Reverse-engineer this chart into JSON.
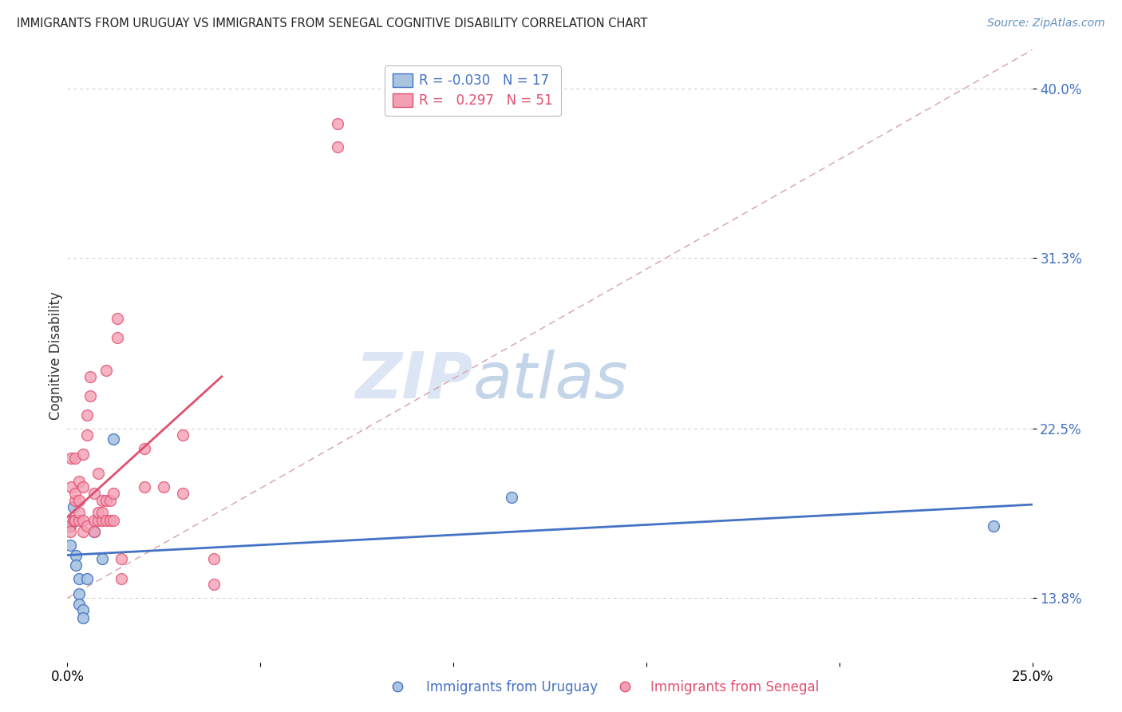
{
  "title": "IMMIGRANTS FROM URUGUAY VS IMMIGRANTS FROM SENEGAL COGNITIVE DISABILITY CORRELATION CHART",
  "source": "Source: ZipAtlas.com",
  "ylabel": "Cognitive Disability",
  "watermark_zip": "ZIP",
  "watermark_atlas": "atlas",
  "xlim": [
    0.0,
    0.25
  ],
  "ylim": [
    0.105,
    0.42
  ],
  "yticks": [
    0.138,
    0.225,
    0.313,
    0.4
  ],
  "ytick_labels": [
    "13.8%",
    "22.5%",
    "31.3%",
    "40.0%"
  ],
  "xticks": [
    0.0,
    0.05,
    0.1,
    0.15,
    0.2,
    0.25
  ],
  "xtick_labels": [
    "0.0%",
    "",
    "",
    "",
    "",
    "25.0%"
  ],
  "color_uruguay": "#a8c4e0",
  "color_senegal": "#f4a0b4",
  "color_line_uruguay": "#4472c4",
  "color_line_senegal": "#e05070",
  "color_ref_line": "#d8a0a8",
  "background_color": "#ffffff",
  "grid_color": "#cccccc",
  "uruguay_x": [
    0.0008,
    0.0008,
    0.0015,
    0.0015,
    0.0022,
    0.0022,
    0.003,
    0.003,
    0.003,
    0.004,
    0.004,
    0.005,
    0.007,
    0.009,
    0.012,
    0.115,
    0.24
  ],
  "uruguay_y": [
    0.175,
    0.165,
    0.185,
    0.178,
    0.16,
    0.155,
    0.148,
    0.14,
    0.135,
    0.132,
    0.128,
    0.148,
    0.172,
    0.158,
    0.22,
    0.19,
    0.175
  ],
  "senegal_x": [
    0.0005,
    0.0008,
    0.001,
    0.001,
    0.0015,
    0.002,
    0.002,
    0.002,
    0.002,
    0.003,
    0.003,
    0.003,
    0.003,
    0.004,
    0.004,
    0.004,
    0.004,
    0.005,
    0.005,
    0.005,
    0.006,
    0.006,
    0.007,
    0.007,
    0.007,
    0.008,
    0.008,
    0.008,
    0.009,
    0.009,
    0.009,
    0.01,
    0.01,
    0.01,
    0.011,
    0.011,
    0.012,
    0.012,
    0.013,
    0.013,
    0.014,
    0.014,
    0.02,
    0.02,
    0.025,
    0.03,
    0.03,
    0.038,
    0.038,
    0.07,
    0.07
  ],
  "senegal_y": [
    0.175,
    0.172,
    0.195,
    0.21,
    0.178,
    0.178,
    0.188,
    0.192,
    0.21,
    0.178,
    0.182,
    0.188,
    0.198,
    0.178,
    0.172,
    0.195,
    0.212,
    0.175,
    0.222,
    0.232,
    0.242,
    0.252,
    0.172,
    0.178,
    0.192,
    0.178,
    0.182,
    0.202,
    0.178,
    0.182,
    0.188,
    0.255,
    0.178,
    0.188,
    0.178,
    0.188,
    0.178,
    0.192,
    0.272,
    0.282,
    0.148,
    0.158,
    0.195,
    0.215,
    0.195,
    0.192,
    0.222,
    0.145,
    0.158,
    0.37,
    0.382
  ]
}
